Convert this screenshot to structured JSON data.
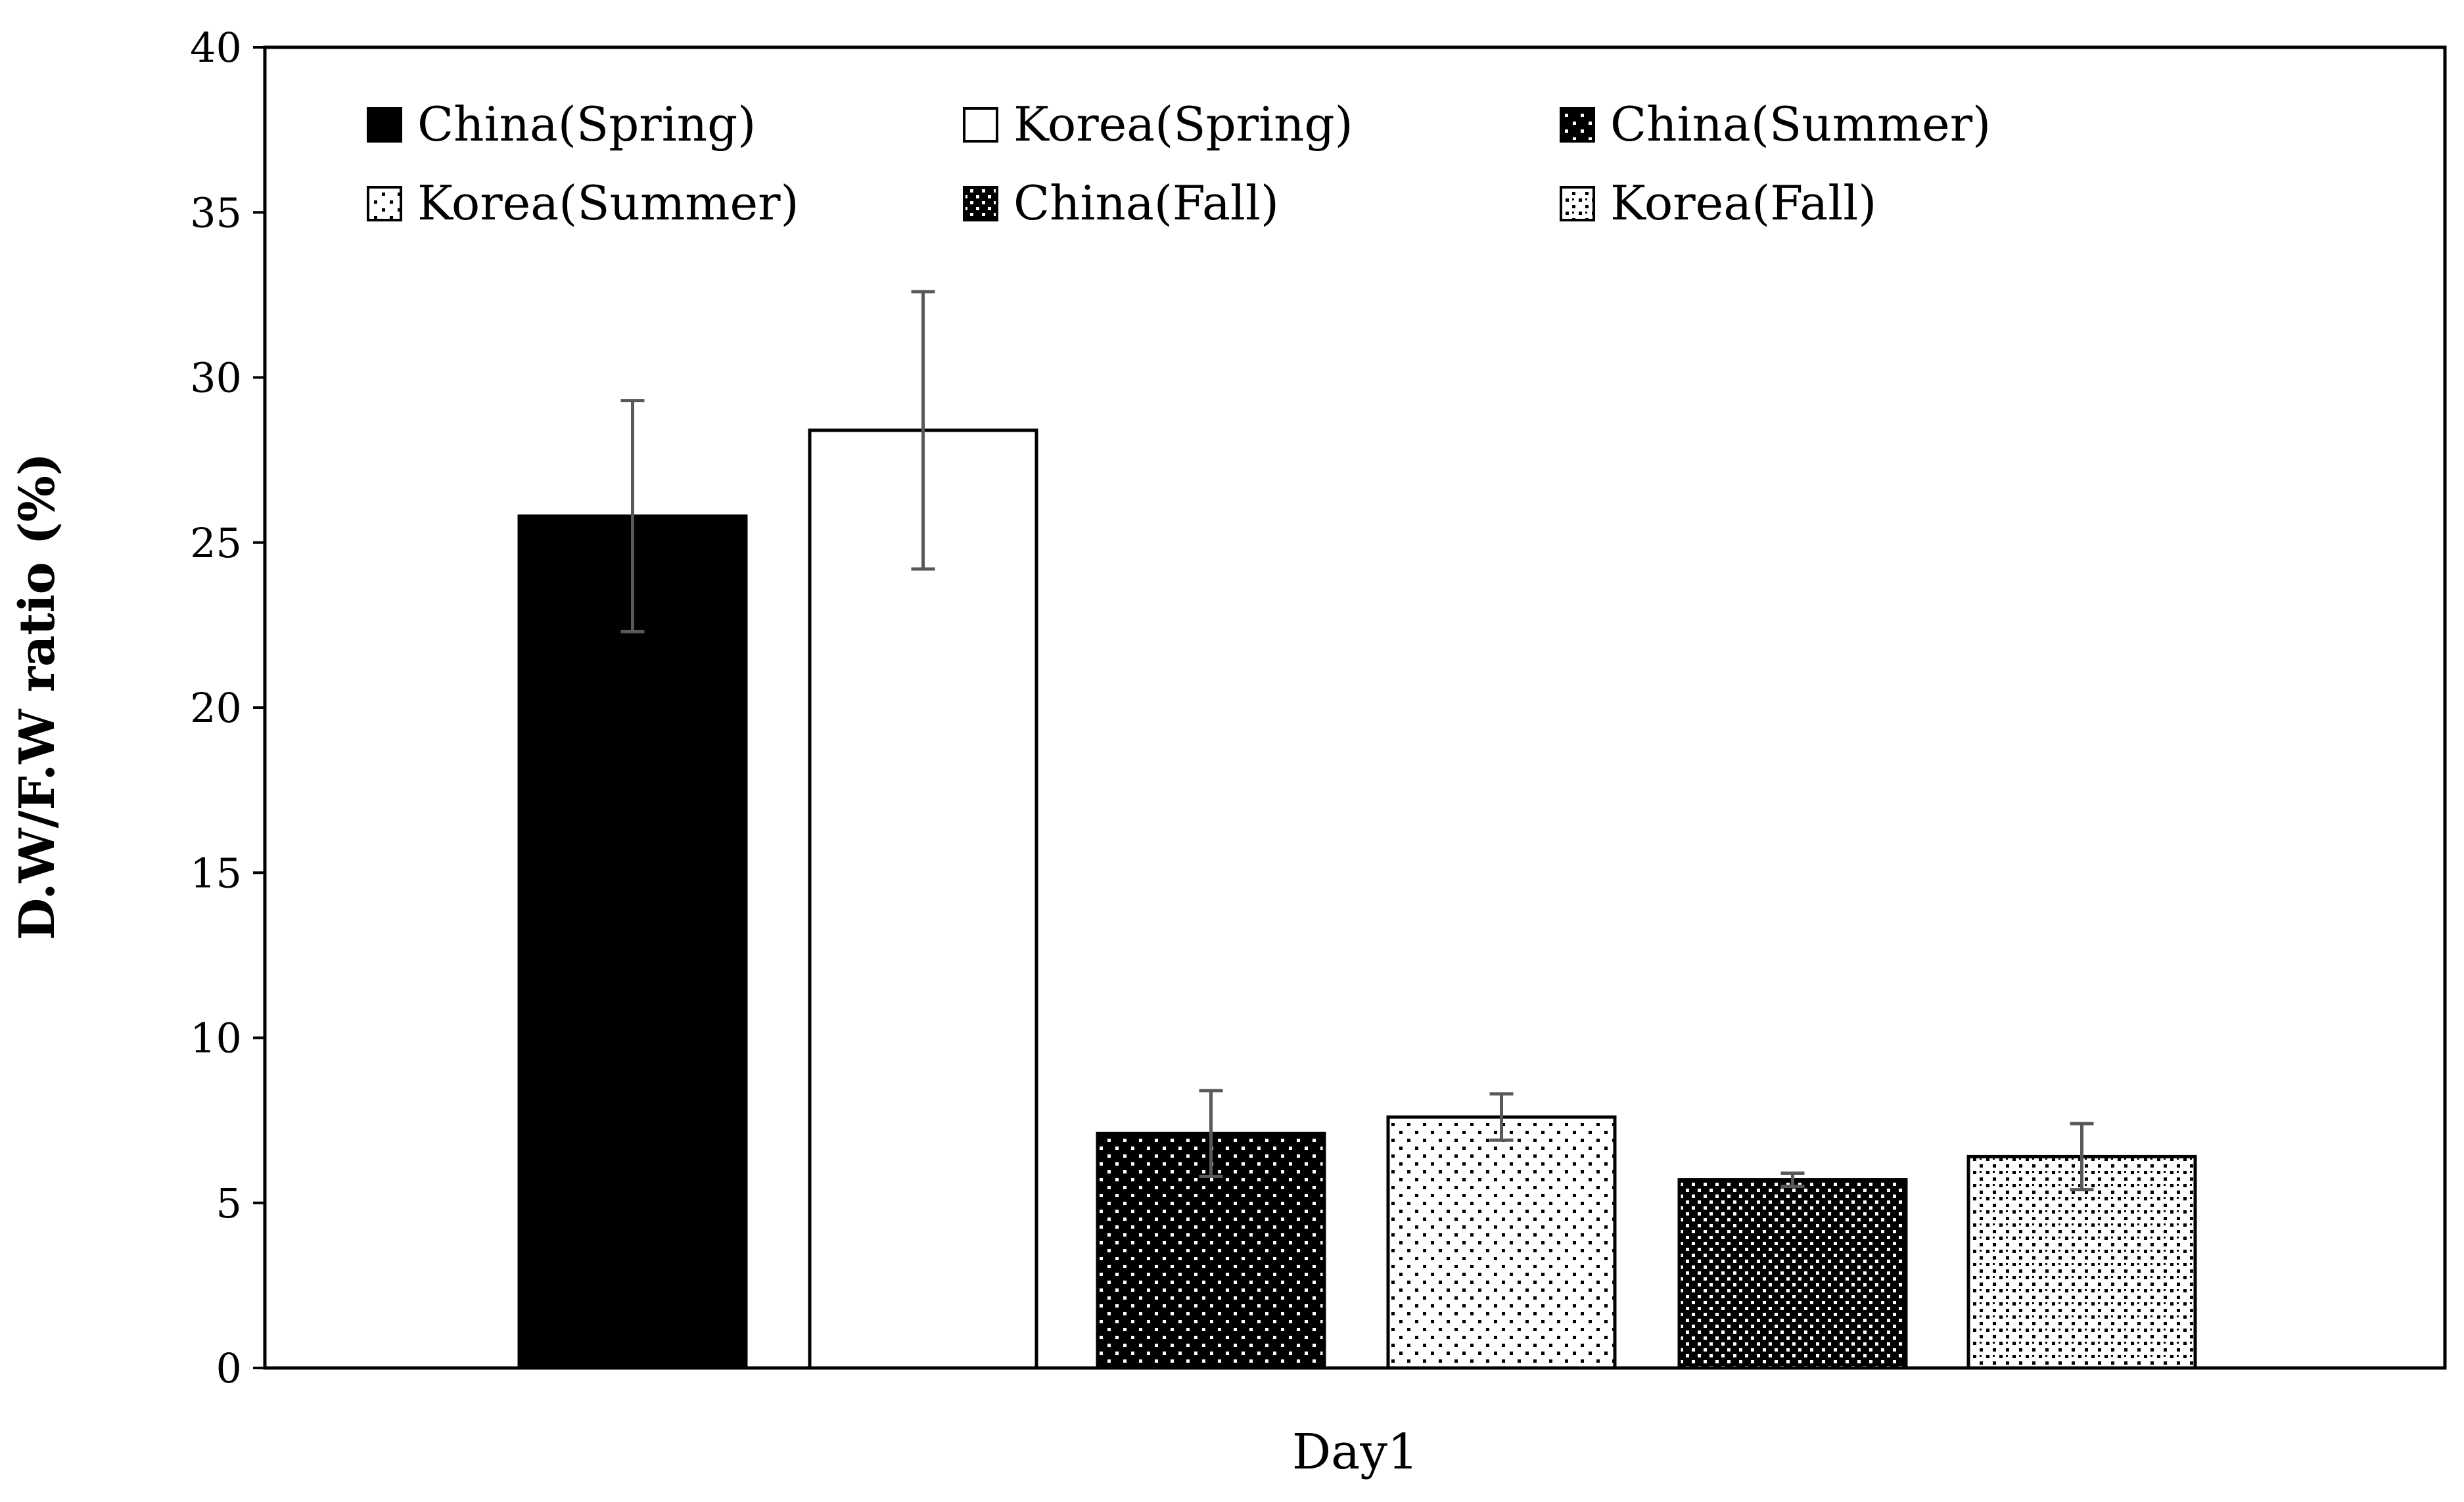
{
  "chart_data": {
    "type": "bar",
    "title": "",
    "xlabel": "Day1",
    "ylabel": "D.W/F.W ratio  (%)",
    "ylim": [
      0,
      40
    ],
    "yticks": [
      0,
      5,
      10,
      15,
      20,
      25,
      30,
      35,
      40
    ],
    "categories": [
      "Day1"
    ],
    "grid": false,
    "legend_position": "top",
    "series": [
      {
        "name": "China(Spring)",
        "values": [
          25.8
        ],
        "error": [
          3.5
        ],
        "pattern": "solid-black"
      },
      {
        "name": "Korea(Spring)",
        "values": [
          28.4
        ],
        "error": [
          4.2
        ],
        "pattern": "solid-white"
      },
      {
        "name": "China(Summer)",
        "values": [
          7.1
        ],
        "error": [
          1.3
        ],
        "pattern": "black-dots"
      },
      {
        "name": "Korea(Summer)",
        "values": [
          7.6
        ],
        "error": [
          0.7
        ],
        "pattern": "white-dots"
      },
      {
        "name": "China(Fall)",
        "values": [
          5.7
        ],
        "error": [
          0.2
        ],
        "pattern": "black-checker"
      },
      {
        "name": "Korea(Fall)",
        "values": [
          6.4
        ],
        "error": [
          1.0
        ],
        "pattern": "white-diagonal-dots"
      }
    ],
    "colors": {
      "bar_edge": "#000000",
      "error_bar": "#595959",
      "axis": "#000000"
    }
  }
}
